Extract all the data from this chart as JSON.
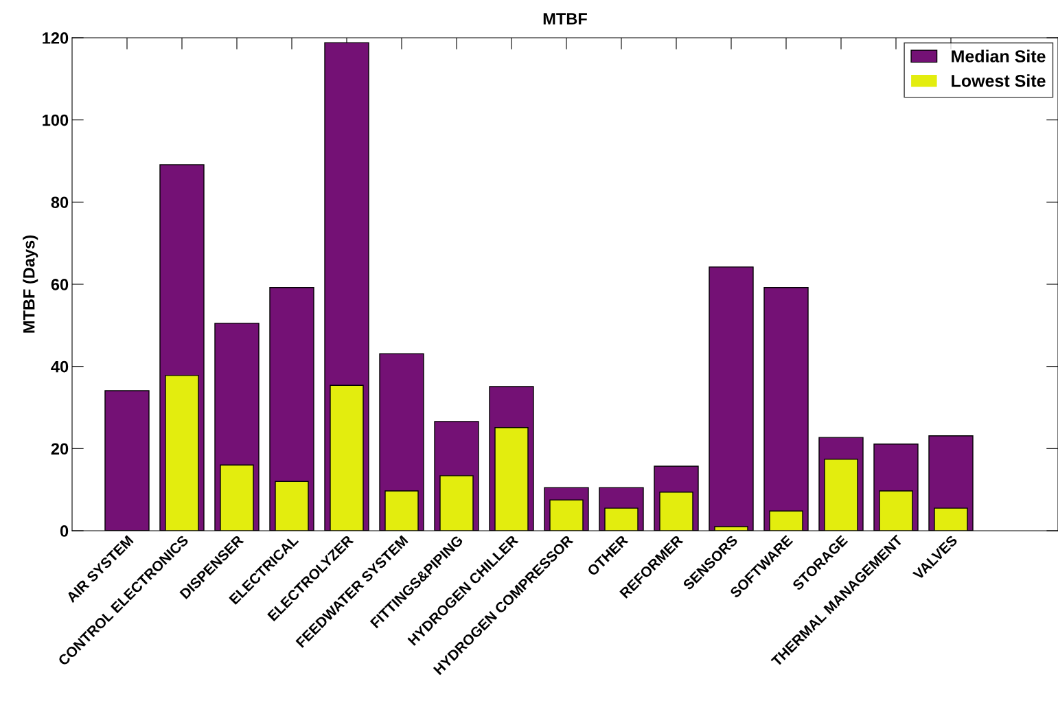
{
  "chart_data": {
    "type": "bar",
    "title": "MTBF",
    "ylabel": "MTBF (Days)",
    "categories": [
      "AIR SYSTEM",
      "CONTROL ELECTRONICS",
      "DISPENSER",
      "ELECTRICAL",
      "ELECTROLYZER",
      "FEEDWATER SYSTEM",
      "FITTINGS&PIPING",
      "HYDROGEN CHILLER",
      "HYDROGEN COMPRESSOR",
      "OTHER",
      "REFORMER",
      "SENSORS",
      "SOFTWARE",
      "STORAGE",
      "THERMAL MANAGEMENT",
      "VALVES"
    ],
    "series": [
      {
        "name": "Median Site",
        "color": "#741175",
        "values": [
          34.1,
          89.1,
          50.5,
          59.2,
          118.8,
          43.1,
          26.6,
          35.1,
          10.5,
          10.5,
          15.7,
          64.2,
          59.2,
          22.7,
          21.1,
          23.1
        ]
      },
      {
        "name": "Lowest Site",
        "color": "#e3ed0e",
        "values": [
          0,
          37.8,
          16.0,
          12.0,
          35.4,
          9.7,
          13.4,
          25.1,
          7.5,
          5.5,
          9.4,
          1.0,
          4.8,
          17.4,
          9.7,
          5.5
        ]
      }
    ],
    "ylim": [
      0,
      120
    ],
    "yticks": [
      0,
      20,
      40,
      60,
      80,
      100,
      120
    ],
    "grid": false,
    "legend": "top right"
  }
}
